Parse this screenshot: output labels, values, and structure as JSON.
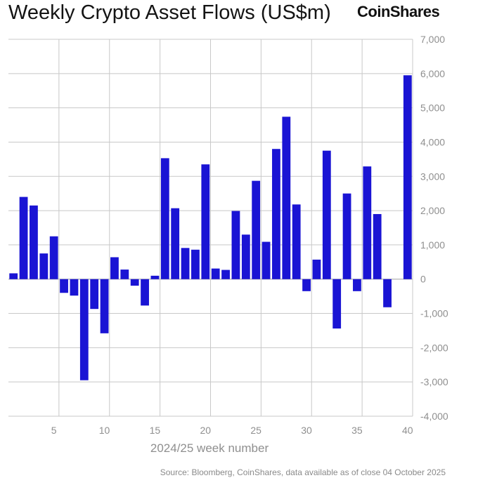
{
  "header": {
    "title": "Weekly Crypto Asset Flows (US$m)",
    "brand": "CoinShares"
  },
  "footer": {
    "source": "Source: Bloomberg, CoinShares, data available as of close 04 October 2025"
  },
  "colors": {
    "bar": "#1a14d4",
    "grid": "#c8c8c8",
    "tick": "#8f8f8f",
    "zero_line": "#a0a0a0"
  },
  "chart_data": {
    "type": "bar",
    "title": "Weekly Crypto Asset Flows (US$m)",
    "xlabel": "2024/25 week number",
    "ylabel": "",
    "xlim": [
      1,
      40
    ],
    "ylim": [
      -4000,
      7000
    ],
    "y_axis_side": "right",
    "grid": true,
    "x_ticks": [
      5,
      10,
      15,
      20,
      25,
      30,
      35,
      40
    ],
    "y_ticks": [
      7000,
      6000,
      5000,
      4000,
      3000,
      2000,
      1000,
      0,
      -1000,
      -2000,
      -3000,
      -4000
    ],
    "y_tick_labels": [
      "7,000",
      "6,000",
      "5,000",
      "4,000",
      "3,000",
      "2,000",
      "1,000",
      "0",
      "-1,000",
      "-2,000",
      "-3,000",
      "-4,000"
    ],
    "categories": [
      1,
      2,
      3,
      4,
      5,
      6,
      7,
      8,
      9,
      10,
      11,
      12,
      13,
      14,
      15,
      16,
      17,
      18,
      19,
      20,
      21,
      22,
      23,
      24,
      25,
      26,
      27,
      28,
      29,
      30,
      31,
      32,
      33,
      34,
      35,
      36,
      37,
      38,
      39,
      40
    ],
    "values": [
      170,
      2400,
      2150,
      750,
      1250,
      -400,
      -480,
      -2950,
      -870,
      -1580,
      640,
      280,
      -190,
      -770,
      100,
      3530,
      2070,
      910,
      860,
      3350,
      310,
      270,
      1990,
      1300,
      2870,
      1090,
      3800,
      4740,
      2180,
      -350,
      570,
      3750,
      -1440,
      2500,
      -350,
      3290,
      1900,
      -820,
      0,
      5950
    ]
  }
}
